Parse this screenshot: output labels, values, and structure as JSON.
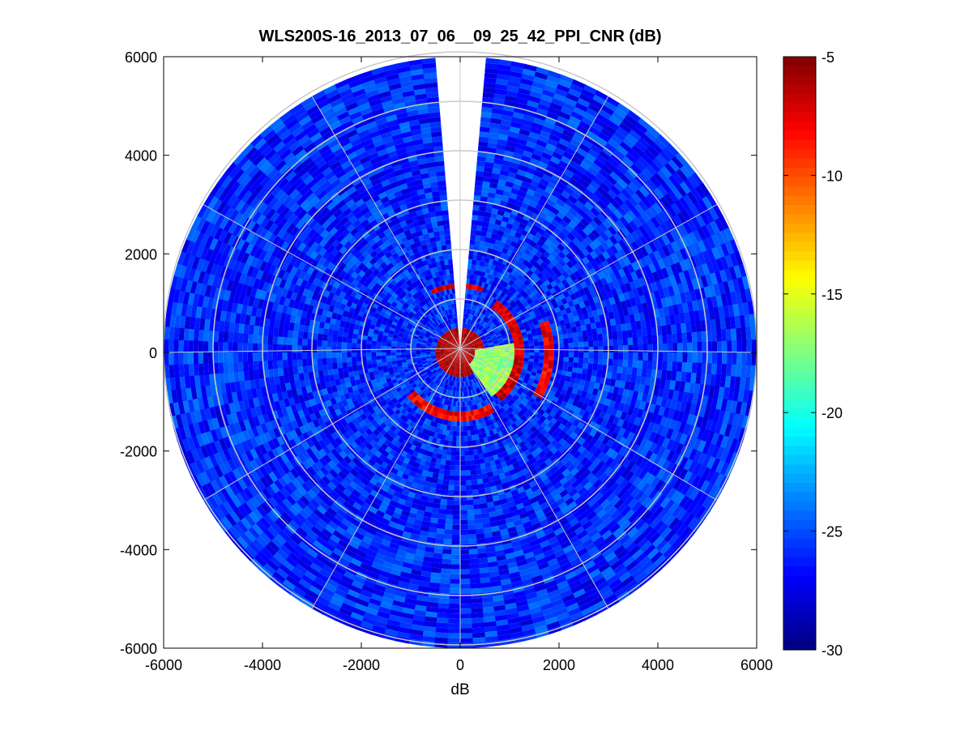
{
  "chart_data": {
    "type": "heatmap",
    "title": "WLS200S-16_2013_07_06__09_25_42_PPI_CNR (dB)",
    "xlabel": "dB",
    "ylabel": "",
    "xlim": [
      -6000,
      6000
    ],
    "ylim": [
      -6000,
      6000
    ],
    "x_ticks": [
      "-6000",
      "-4000",
      "-2000",
      "0",
      "2000",
      "4000",
      "6000"
    ],
    "y_ticks": [
      "6000",
      "4000",
      "2000",
      "0",
      "-2000",
      "-4000",
      "-6000"
    ],
    "max_range": 6000,
    "range_rings": [
      1000,
      2000,
      3000,
      4000,
      5000,
      6000
    ],
    "spoke_angles_deg": [
      0,
      30,
      60,
      90,
      120,
      150,
      180,
      210,
      240,
      270,
      300,
      330
    ],
    "blank_sector_deg": [
      -4,
      4
    ],
    "colorbar": {
      "min": -30,
      "max": -5,
      "ticks": [
        "-5",
        "-10",
        "-15",
        "-20",
        "-25",
        "-30"
      ],
      "colormap": "jet"
    },
    "background_level_db": -26,
    "features": [
      {
        "name": "near-field core",
        "range": [
          0,
          450
        ],
        "az": [
          0,
          360
        ],
        "level_db": -6
      },
      {
        "name": "east arc",
        "range": [
          1150,
          1250
        ],
        "az": [
          35,
          140
        ],
        "level_db": -7
      },
      {
        "name": "east fan",
        "range": [
          300,
          1100
        ],
        "az": [
          80,
          145
        ],
        "level_db": -17
      },
      {
        "name": "outer east arc",
        "range": [
          1750,
          1850
        ],
        "az": [
          70,
          120
        ],
        "level_db": -8
      },
      {
        "name": "north-northeast arc",
        "range": [
          1300,
          1400
        ],
        "az": [
          -25,
          20
        ],
        "level_db": -7
      },
      {
        "name": "south arc",
        "range": [
          1250,
          1350
        ],
        "az": [
          150,
          230
        ],
        "level_db": -8
      }
    ],
    "colors": {
      "grid": "#c8c8c8",
      "frame": "#000000",
      "background": "#ffffff"
    }
  }
}
